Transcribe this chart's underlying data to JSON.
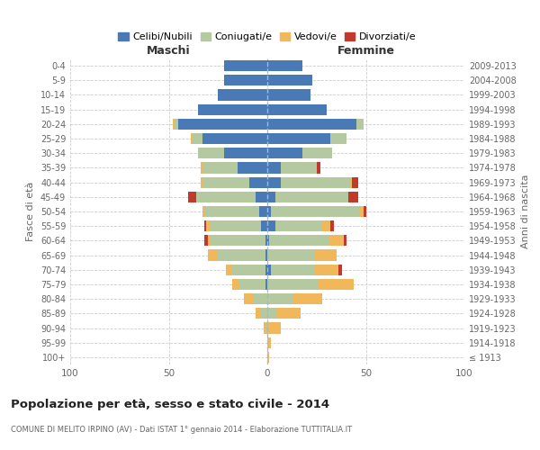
{
  "age_groups": [
    "100+",
    "95-99",
    "90-94",
    "85-89",
    "80-84",
    "75-79",
    "70-74",
    "65-69",
    "60-64",
    "55-59",
    "50-54",
    "45-49",
    "40-44",
    "35-39",
    "30-34",
    "25-29",
    "20-24",
    "15-19",
    "10-14",
    "5-9",
    "0-4"
  ],
  "birth_years": [
    "≤ 1913",
    "1914-1918",
    "1919-1923",
    "1924-1928",
    "1929-1933",
    "1934-1938",
    "1939-1943",
    "1944-1948",
    "1949-1953",
    "1954-1958",
    "1959-1963",
    "1964-1968",
    "1969-1973",
    "1974-1978",
    "1979-1983",
    "1984-1988",
    "1989-1993",
    "1994-1998",
    "1999-2003",
    "2004-2008",
    "2009-2013"
  ],
  "maschi_celibi": [
    0,
    0,
    0,
    0,
    0,
    1,
    1,
    1,
    1,
    3,
    4,
    6,
    9,
    15,
    22,
    33,
    45,
    35,
    25,
    22,
    22
  ],
  "maschi_coniugati": [
    0,
    0,
    1,
    3,
    7,
    13,
    17,
    24,
    28,
    26,
    28,
    30,
    24,
    18,
    13,
    5,
    2,
    0,
    0,
    0,
    0
  ],
  "maschi_vedovi": [
    0,
    0,
    1,
    3,
    5,
    4,
    3,
    5,
    1,
    2,
    1,
    0,
    1,
    1,
    0,
    1,
    1,
    0,
    0,
    0,
    0
  ],
  "maschi_divorziati": [
    0,
    0,
    0,
    0,
    0,
    0,
    0,
    0,
    2,
    1,
    0,
    4,
    0,
    0,
    0,
    0,
    0,
    0,
    0,
    0,
    0
  ],
  "femmine_celibi": [
    0,
    0,
    0,
    0,
    0,
    0,
    2,
    0,
    1,
    4,
    2,
    4,
    7,
    7,
    18,
    32,
    45,
    30,
    22,
    23,
    18
  ],
  "femmine_coniugati": [
    0,
    0,
    0,
    5,
    13,
    26,
    22,
    24,
    30,
    24,
    45,
    37,
    35,
    18,
    15,
    8,
    4,
    0,
    0,
    0,
    0
  ],
  "femmine_vedovi": [
    1,
    2,
    7,
    12,
    15,
    18,
    12,
    11,
    8,
    4,
    2,
    0,
    1,
    0,
    0,
    0,
    0,
    0,
    0,
    0,
    0
  ],
  "femmine_divorziati": [
    0,
    0,
    0,
    0,
    0,
    0,
    2,
    0,
    1,
    2,
    1,
    5,
    3,
    2,
    0,
    0,
    0,
    0,
    0,
    0,
    0
  ],
  "color_celibi": "#4a7ab5",
  "color_coniugati": "#b5c9a0",
  "color_vedovi": "#f0b85a",
  "color_divorziati": "#c0392b",
  "color_grid": "#cccccc",
  "color_axis_label": "#666666",
  "color_title": "#222222",
  "color_subtitle": "#666666",
  "color_dashed": "#a0b8d8",
  "bg_color": "#ffffff",
  "title": "Popolazione per età, sesso e stato civile - 2014",
  "subtitle": "COMUNE DI MELITO IRPINO (AV) - Dati ISTAT 1° gennaio 2014 - Elaborazione TUTTITALIA.IT",
  "ylabel": "Fasce di età",
  "ylabel_right": "Anni di nascita",
  "xlabel_left": "Maschi",
  "xlabel_right": "Femmine",
  "xlim": 100,
  "legend_labels": [
    "Celibi/Nubili",
    "Coniugati/e",
    "Vedovi/e",
    "Divorziati/e"
  ]
}
